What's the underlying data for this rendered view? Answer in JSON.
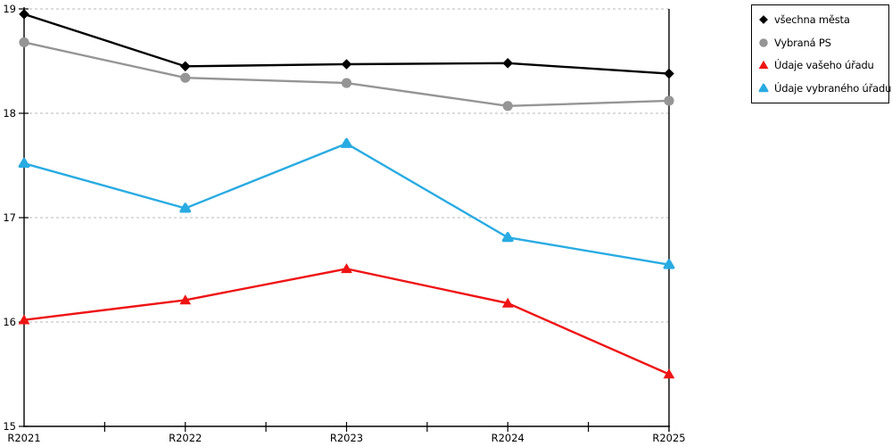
{
  "chart_data": {
    "type": "line",
    "title": "",
    "xlabel": "",
    "ylabel": "",
    "categories": [
      "R2021",
      "R2022",
      "R2023",
      "R2024",
      "R2025"
    ],
    "series": [
      {
        "name": "všechna města",
        "marker": "diamond",
        "color": "#000000",
        "values": [
          18.95,
          18.45,
          18.47,
          18.48,
          18.38
        ]
      },
      {
        "name": "Vybraná PS",
        "marker": "circle",
        "color": "#959595",
        "values": [
          18.68,
          18.34,
          18.29,
          18.07,
          18.12
        ]
      },
      {
        "name": "Údaje vašeho úřadu",
        "marker": "triangle",
        "color": "#ee1414",
        "values": [
          16.02,
          16.21,
          16.51,
          16.18,
          15.5
        ]
      },
      {
        "name": "Údaje vybraného úřadu",
        "marker": "triangle-rounded",
        "color": "#29abe2",
        "values": [
          17.52,
          17.09,
          17.71,
          16.81,
          16.55
        ]
      }
    ],
    "ylim": [
      15,
      19
    ],
    "ytick_labels": [
      "15",
      "16",
      "17",
      "18",
      "19"
    ],
    "ytick_step": 1,
    "xtick_minor": "half-step ticks between categories",
    "grid": "horizontal dashed at integer y values",
    "legend_position": "top-right, bordered box",
    "axis_color": "#000000",
    "grid_color": "#b8b8b8",
    "right_border_at_last_category": true
  }
}
